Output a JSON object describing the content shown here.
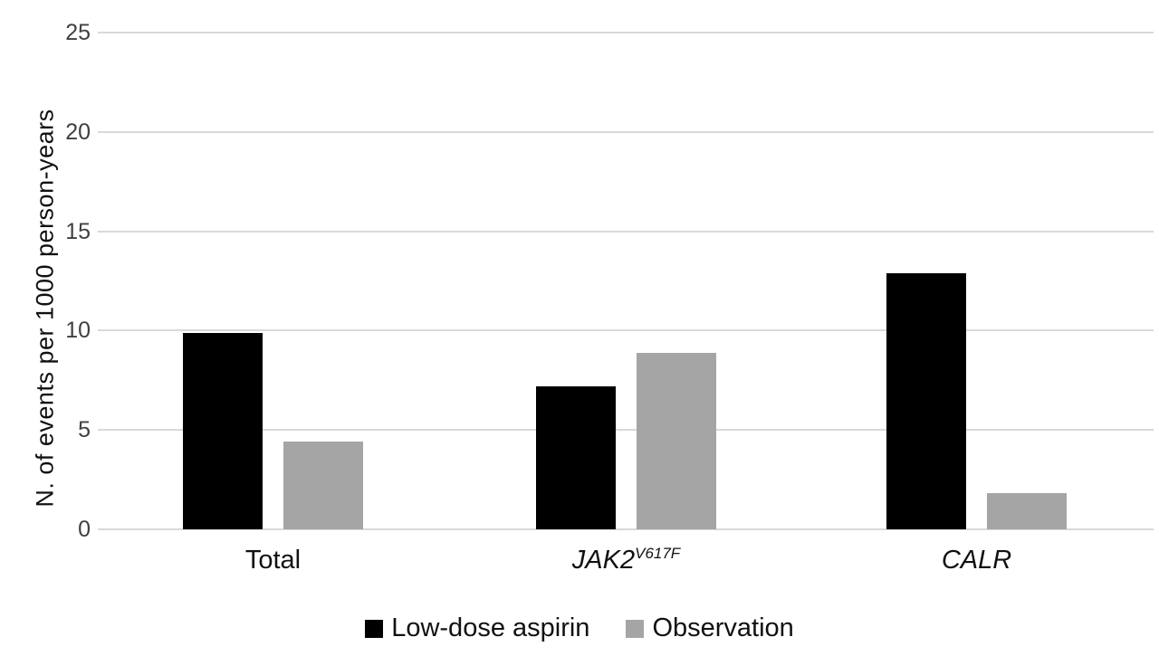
{
  "chart_data": {
    "type": "bar",
    "title": "",
    "xlabel": "",
    "ylabel": "N. of events per 1000 person-years",
    "ylim": [
      0,
      25
    ],
    "yticks": [
      0,
      5,
      10,
      15,
      20,
      25
    ],
    "grid": true,
    "legend_position": "bottom",
    "gridline_color": "#d9d9d9",
    "tick_label_color": "#404040",
    "categories": [
      {
        "label": "Total",
        "italic": false,
        "superscript": ""
      },
      {
        "label": "JAK2",
        "italic": true,
        "superscript": "V617F"
      },
      {
        "label": "CALR",
        "italic": true,
        "superscript": ""
      }
    ],
    "series": [
      {
        "name": "Low-dose aspirin",
        "color": "#000000",
        "values": [
          9.9,
          7.2,
          12.9
        ]
      },
      {
        "name": "Observation",
        "color": "#a5a5a5",
        "values": [
          4.4,
          8.9,
          1.8
        ]
      }
    ]
  }
}
